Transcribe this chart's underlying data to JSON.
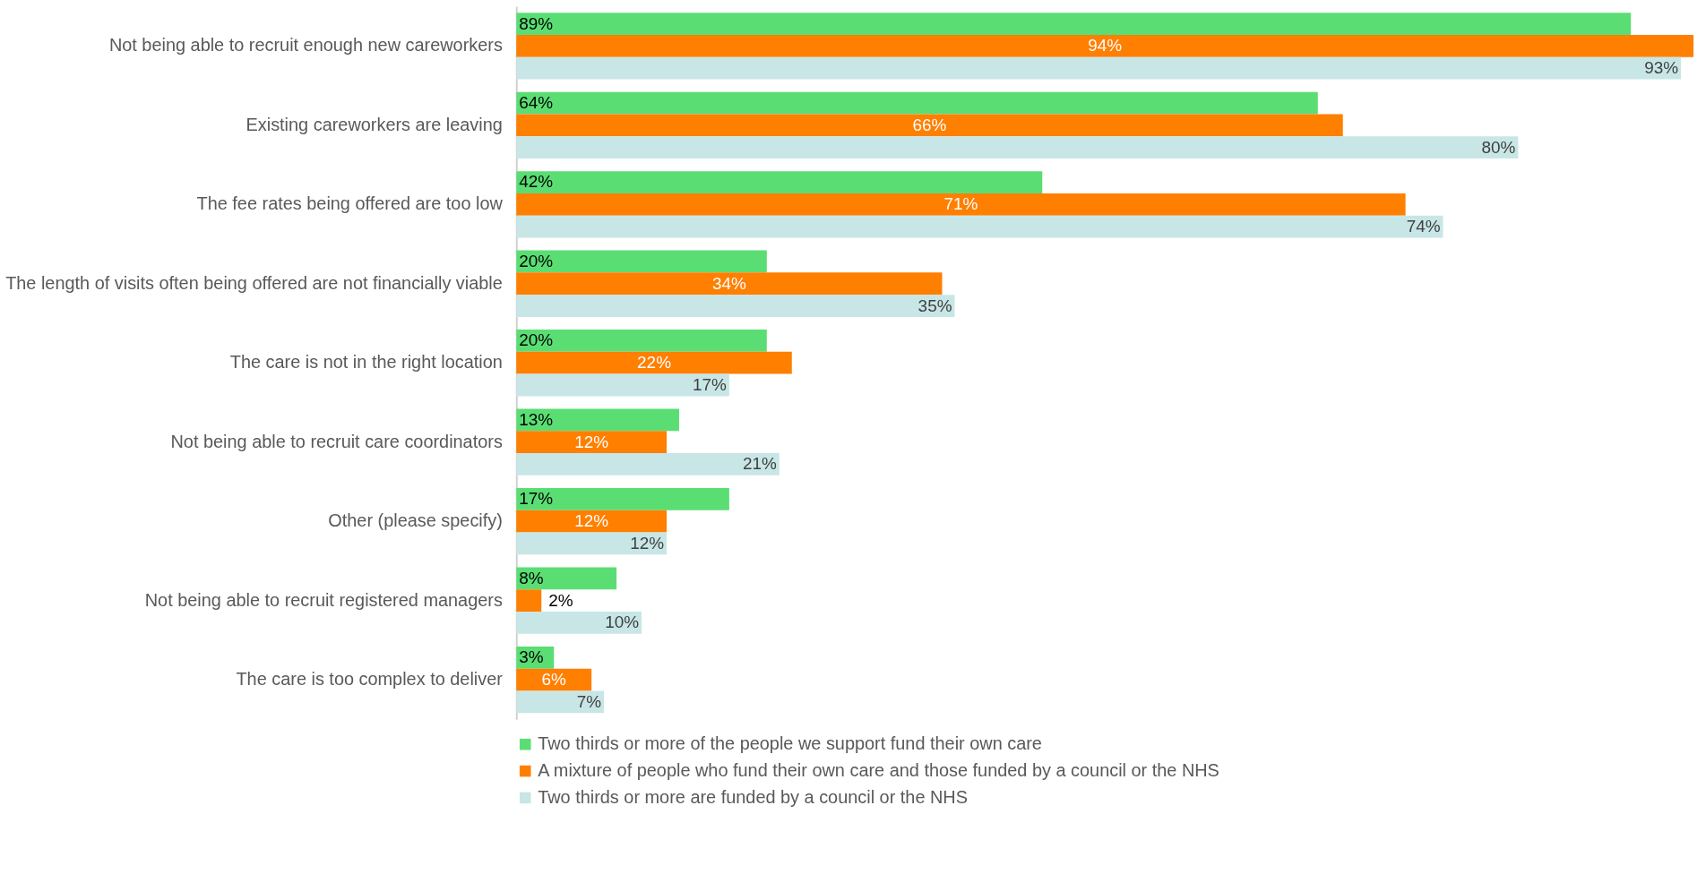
{
  "chart_data": {
    "type": "bar",
    "orientation": "horizontal",
    "legend": "bottom",
    "categories": [
      "Not being able to recruit enough new careworkers",
      "Existing careworkers are leaving",
      "The fee rates being offered are too low",
      "The length of visits often being offered are not financially viable",
      "The care is not in the right location",
      "Not being able to recruit care coordinators",
      "Other (please specify)",
      "Not being able to recruit registered managers",
      "The care is too complex to deliver"
    ],
    "series": [
      {
        "name": "Two thirds or more of the people we support fund their own care",
        "color": "#5ade74",
        "values": [
          89,
          64,
          42,
          20,
          20,
          13,
          17,
          8,
          3
        ],
        "value_labels": [
          "89%",
          "64%",
          "42%",
          "20%",
          "20%",
          "13%",
          "17%",
          "8%",
          "3%"
        ]
      },
      {
        "name": "A mixture of people who fund their own care and those funded by a council or the NHS",
        "color": "#ff7f00",
        "values": [
          94,
          66,
          71,
          34,
          22,
          12,
          12,
          2,
          6
        ],
        "value_labels": [
          "94%",
          "66%",
          "71%",
          "34%",
          "22%",
          "12%",
          "12%",
          "2%",
          "6%"
        ]
      },
      {
        "name": "Two thirds or more are funded by a council or the NHS",
        "color": "#c8e6e6",
        "values": [
          93,
          80,
          74,
          35,
          17,
          21,
          12,
          10,
          7
        ],
        "value_labels": [
          "93%",
          "80%",
          "74%",
          "35%",
          "17%",
          "21%",
          "12%",
          "10%",
          "7%"
        ]
      }
    ]
  }
}
